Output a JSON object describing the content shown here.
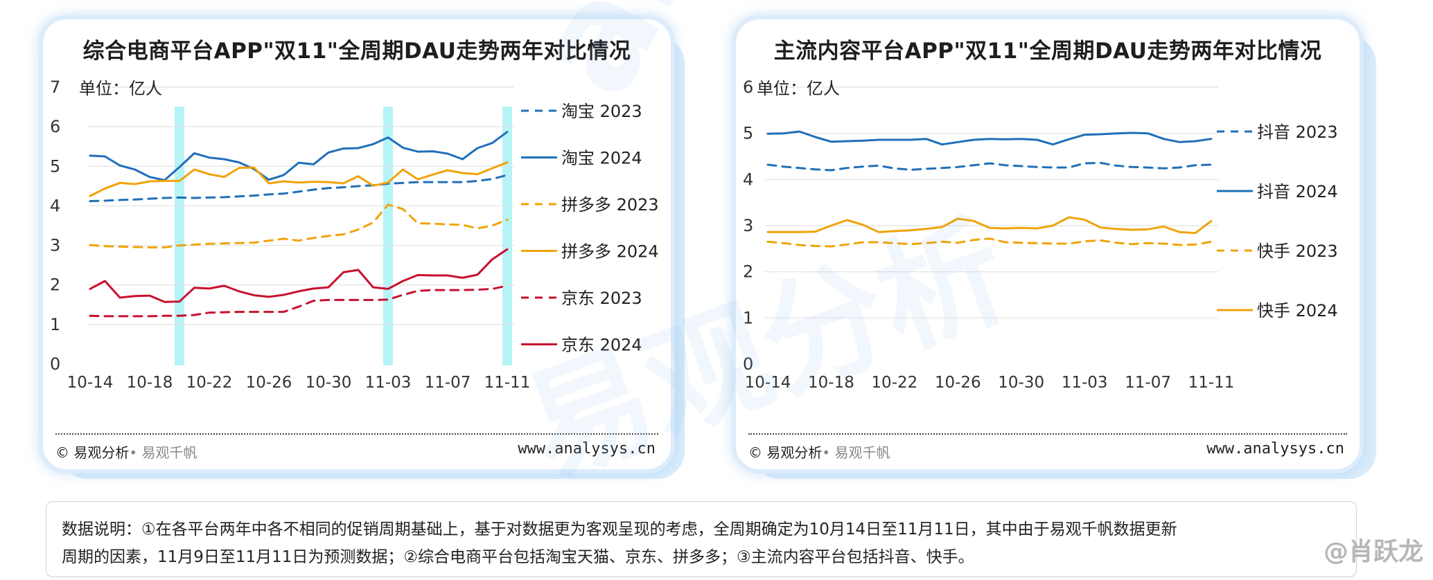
{
  "watermark": {
    "brand": "analysys",
    "cn": "易观分析",
    "weibo": "@肖跃龙"
  },
  "charts": [
    {
      "title": "综合电商平台APP\"双11\"全周期DAU走势两年对比情况",
      "unit": "单位：亿人",
      "copyright": "© 易观分析",
      "copyright_sub": "• 易观千帆",
      "website": "www.analysys.cn"
    },
    {
      "title": "主流内容平台APP\"双11\"全周期DAU走势两年对比情况",
      "unit": "单位：亿人",
      "copyright": "© 易观分析",
      "copyright_sub": "• 易观千帆",
      "website": "www.analysys.cn"
    }
  ],
  "note": {
    "line1": "数据说明：①在各平台两年中各不相同的促销周期基础上，基于对数据更为客观呈现的考虑，全周期确定为10月14日至11月11日，其中由于易观千帆数据更新",
    "line2": "周期的因素，11月9日至11月11日为预测数据；②综合电商平台包括淘宝天猫、京东、拼多多；③主流内容平台包括抖音、快手。"
  },
  "chart_data": [
    {
      "type": "line",
      "title": "综合电商平台APP\"双11\"全周期DAU走势两年对比情况",
      "ylabel": "单位：亿人",
      "ylim": [
        0,
        7
      ],
      "yticks": [
        0,
        1,
        2,
        3,
        4,
        5,
        6,
        7
      ],
      "x": [
        "10-14",
        "10-15",
        "10-16",
        "10-17",
        "10-18",
        "10-19",
        "10-20",
        "10-21",
        "10-22",
        "10-23",
        "10-24",
        "10-25",
        "10-26",
        "10-27",
        "10-28",
        "10-29",
        "10-30",
        "10-31",
        "11-01",
        "11-02",
        "11-03",
        "11-04",
        "11-05",
        "11-06",
        "11-07",
        "11-08",
        "11-09",
        "11-10",
        "11-11"
      ],
      "xticks": [
        "10-14",
        "10-18",
        "10-22",
        "10-26",
        "10-30",
        "11-03",
        "11-07",
        "11-11"
      ],
      "highlight_bands": [
        "10-20",
        "11-03",
        "11-11"
      ],
      "grid": true,
      "legend_position": "right",
      "series": [
        {
          "name": "淘宝 2023",
          "color": "#1f6fb8",
          "dash": true,
          "values": [
            4.12,
            4.13,
            4.15,
            4.16,
            4.18,
            4.2,
            4.21,
            4.2,
            4.21,
            4.22,
            4.24,
            4.26,
            4.29,
            4.31,
            4.36,
            4.41,
            4.45,
            4.47,
            4.5,
            4.52,
            4.56,
            4.58,
            4.6,
            4.6,
            4.6,
            4.6,
            4.63,
            4.68,
            4.78
          ]
        },
        {
          "name": "淘宝 2024",
          "color": "#1f6fb8",
          "dash": false,
          "values": [
            5.27,
            5.25,
            5.02,
            4.92,
            4.73,
            4.65,
            4.98,
            5.33,
            5.22,
            5.18,
            5.1,
            4.93,
            4.66,
            4.78,
            5.09,
            5.05,
            5.35,
            5.45,
            5.46,
            5.56,
            5.73,
            5.47,
            5.37,
            5.38,
            5.32,
            5.18,
            5.46,
            5.59,
            5.87
          ]
        },
        {
          "name": "拼多多 2023",
          "color": "#f0a30a",
          "dash": true,
          "values": [
            3.01,
            2.98,
            2.97,
            2.96,
            2.95,
            2.95,
            3.0,
            3.02,
            3.04,
            3.05,
            3.06,
            3.07,
            3.12,
            3.17,
            3.12,
            3.19,
            3.24,
            3.28,
            3.4,
            3.58,
            4.03,
            3.92,
            3.56,
            3.55,
            3.53,
            3.52,
            3.43,
            3.5,
            3.65
          ]
        },
        {
          "name": "拼多多 2024",
          "color": "#f0a30a",
          "dash": false,
          "values": [
            4.25,
            4.44,
            4.58,
            4.55,
            4.62,
            4.63,
            4.63,
            4.92,
            4.8,
            4.73,
            4.96,
            4.97,
            4.57,
            4.62,
            4.59,
            4.61,
            4.6,
            4.57,
            4.75,
            4.51,
            4.59,
            4.92,
            4.67,
            4.79,
            4.9,
            4.83,
            4.8,
            4.95,
            5.1
          ]
        },
        {
          "name": "京东 2023",
          "color": "#c8102e",
          "dash": true,
          "values": [
            1.22,
            1.21,
            1.21,
            1.21,
            1.21,
            1.22,
            1.22,
            1.24,
            1.3,
            1.31,
            1.32,
            1.32,
            1.32,
            1.32,
            1.45,
            1.6,
            1.62,
            1.62,
            1.62,
            1.62,
            1.63,
            1.75,
            1.85,
            1.87,
            1.87,
            1.87,
            1.88,
            1.9,
            1.98
          ]
        },
        {
          "name": "京东 2024",
          "color": "#c8102e",
          "dash": false,
          "values": [
            1.9,
            2.1,
            1.68,
            1.72,
            1.73,
            1.57,
            1.58,
            1.93,
            1.91,
            1.98,
            1.84,
            1.74,
            1.7,
            1.75,
            1.84,
            1.91,
            1.94,
            2.32,
            2.38,
            1.94,
            1.9,
            2.1,
            2.25,
            2.24,
            2.24,
            2.18,
            2.26,
            2.65,
            2.9
          ]
        }
      ]
    },
    {
      "type": "line",
      "title": "主流内容平台APP\"双11\"全周期DAU走势两年对比情况",
      "ylabel": "单位：亿人",
      "ylim": [
        0,
        6
      ],
      "yticks": [
        0,
        1,
        2,
        3,
        4,
        5,
        6
      ],
      "x": [
        "10-14",
        "10-15",
        "10-16",
        "10-17",
        "10-18",
        "10-19",
        "10-20",
        "10-21",
        "10-22",
        "10-23",
        "10-24",
        "10-25",
        "10-26",
        "10-27",
        "10-28",
        "10-29",
        "10-30",
        "10-31",
        "11-01",
        "11-02",
        "11-03",
        "11-04",
        "11-05",
        "11-06",
        "11-07",
        "11-08",
        "11-09",
        "11-10",
        "11-11"
      ],
      "xticks": [
        "10-14",
        "10-18",
        "10-22",
        "10-26",
        "10-30",
        "11-03",
        "11-07",
        "11-11"
      ],
      "grid": true,
      "legend_position": "right",
      "series": [
        {
          "name": "抖音 2023",
          "color": "#1f6fb8",
          "dash": true,
          "values": [
            4.32,
            4.28,
            4.25,
            4.22,
            4.2,
            4.25,
            4.28,
            4.3,
            4.24,
            4.21,
            4.23,
            4.25,
            4.27,
            4.31,
            4.35,
            4.31,
            4.29,
            4.27,
            4.26,
            4.26,
            4.35,
            4.36,
            4.3,
            4.27,
            4.26,
            4.24,
            4.26,
            4.31,
            4.32
          ]
        },
        {
          "name": "抖音 2024",
          "color": "#1f6fb8",
          "dash": false,
          "values": [
            4.99,
            5.0,
            5.04,
            4.92,
            4.82,
            4.83,
            4.84,
            4.86,
            4.86,
            4.86,
            4.88,
            4.76,
            4.81,
            4.86,
            4.88,
            4.87,
            4.88,
            4.86,
            4.76,
            4.87,
            4.97,
            4.98,
            5.0,
            5.01,
            5.0,
            4.88,
            4.81,
            4.83,
            4.88
          ]
        },
        {
          "name": "快手 2023",
          "color": "#f0a30a",
          "dash": true,
          "values": [
            2.65,
            2.62,
            2.58,
            2.56,
            2.55,
            2.59,
            2.64,
            2.64,
            2.62,
            2.6,
            2.62,
            2.65,
            2.63,
            2.69,
            2.72,
            2.64,
            2.63,
            2.62,
            2.61,
            2.61,
            2.66,
            2.68,
            2.63,
            2.6,
            2.62,
            2.61,
            2.58,
            2.59,
            2.65
          ]
        },
        {
          "name": "快手 2024",
          "color": "#f0a30a",
          "dash": false,
          "values": [
            2.86,
            2.86,
            2.86,
            2.87,
            3.0,
            3.12,
            3.02,
            2.86,
            2.88,
            2.9,
            2.93,
            2.97,
            3.15,
            3.1,
            2.95,
            2.94,
            2.95,
            2.94,
            3.0,
            3.18,
            3.13,
            2.96,
            2.93,
            2.91,
            2.92,
            2.98,
            2.86,
            2.84,
            3.1
          ]
        }
      ]
    }
  ]
}
